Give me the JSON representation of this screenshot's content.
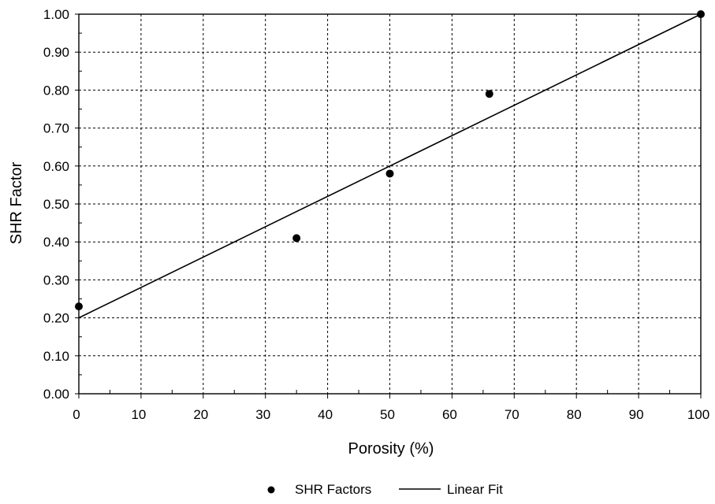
{
  "chart_data": {
    "type": "scatter",
    "xlabel": "Porosity (%)",
    "ylabel": "SHR Factor",
    "xlim": [
      0,
      100
    ],
    "ylim": [
      0,
      1
    ],
    "x_ticks": [
      0,
      10,
      20,
      30,
      40,
      50,
      60,
      70,
      80,
      90,
      100
    ],
    "y_ticks": [
      0.0,
      0.1,
      0.2,
      0.3,
      0.4,
      0.5,
      0.6,
      0.7,
      0.8,
      0.9,
      1.0
    ],
    "x_tick_labels": [
      "0",
      "10",
      "20",
      "30",
      "40",
      "50",
      "60",
      "70",
      "80",
      "90",
      "100"
    ],
    "y_tick_labels": [
      "0.00",
      "0.10",
      "0.20",
      "0.30",
      "0.40",
      "0.50",
      "0.60",
      "0.70",
      "0.80",
      "0.90",
      "1.00"
    ],
    "grid": true,
    "legend_position": "bottom-center",
    "series": [
      {
        "name": "SHR Factors",
        "kind": "points",
        "x": [
          0,
          35,
          50,
          66,
          100
        ],
        "y": [
          0.23,
          0.41,
          0.58,
          0.79,
          1.0
        ]
      },
      {
        "name": "Linear Fit",
        "kind": "line",
        "x": [
          0,
          100
        ],
        "y": [
          0.2,
          1.0
        ]
      }
    ]
  },
  "colors": {
    "grid": "#000000",
    "axis": "#000000",
    "marker": "#000000",
    "line": "#000000"
  }
}
